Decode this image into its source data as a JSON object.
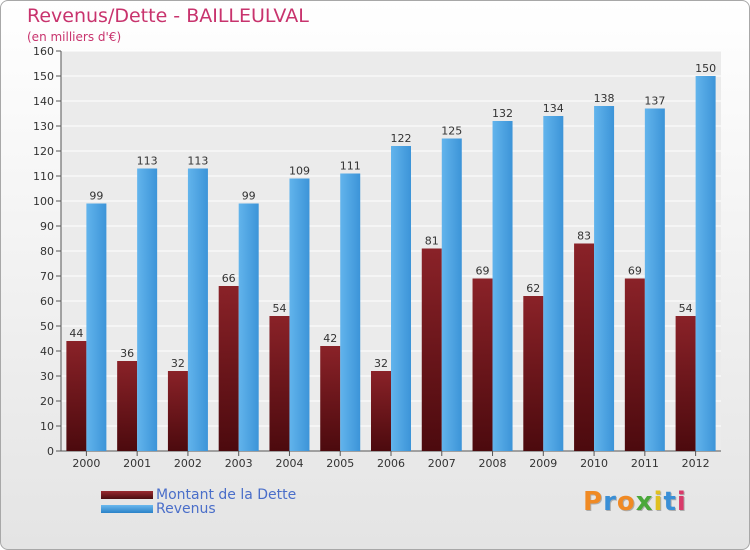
{
  "title": "Revenus/Dette - BAILLEULVAL",
  "subtitle": "(en milliers d'€)",
  "logo": {
    "letters": [
      "P",
      "r",
      "o",
      "x",
      "i",
      "t",
      "i"
    ],
    "colors": [
      "#f08a24",
      "#3a8fd6",
      "#f08a24",
      "#4aa83a",
      "#e0c020",
      "#3a8fd6",
      "#d93a6a"
    ]
  },
  "colors": {
    "debt": "#7a1a20",
    "revenue": "#5aaee8",
    "axis_text": "#333333"
  },
  "chart_data": {
    "type": "bar",
    "categories": [
      "2000",
      "2001",
      "2002",
      "2003",
      "2004",
      "2005",
      "2006",
      "2007",
      "2008",
      "2009",
      "2010",
      "2011",
      "2012"
    ],
    "series": [
      {
        "name": "Montant de la Dette",
        "values": [
          44,
          36,
          32,
          66,
          54,
          42,
          32,
          81,
          69,
          62,
          83,
          69,
          54
        ]
      },
      {
        "name": "Revenus",
        "values": [
          99,
          113,
          113,
          99,
          109,
          111,
          122,
          125,
          132,
          134,
          138,
          137,
          150
        ]
      }
    ],
    "ylim": [
      0,
      160
    ],
    "yticks": [
      0,
      10,
      20,
      30,
      40,
      50,
      60,
      70,
      80,
      90,
      100,
      110,
      120,
      130,
      140,
      150,
      160
    ],
    "grid": true,
    "legend": "bottom-left"
  }
}
